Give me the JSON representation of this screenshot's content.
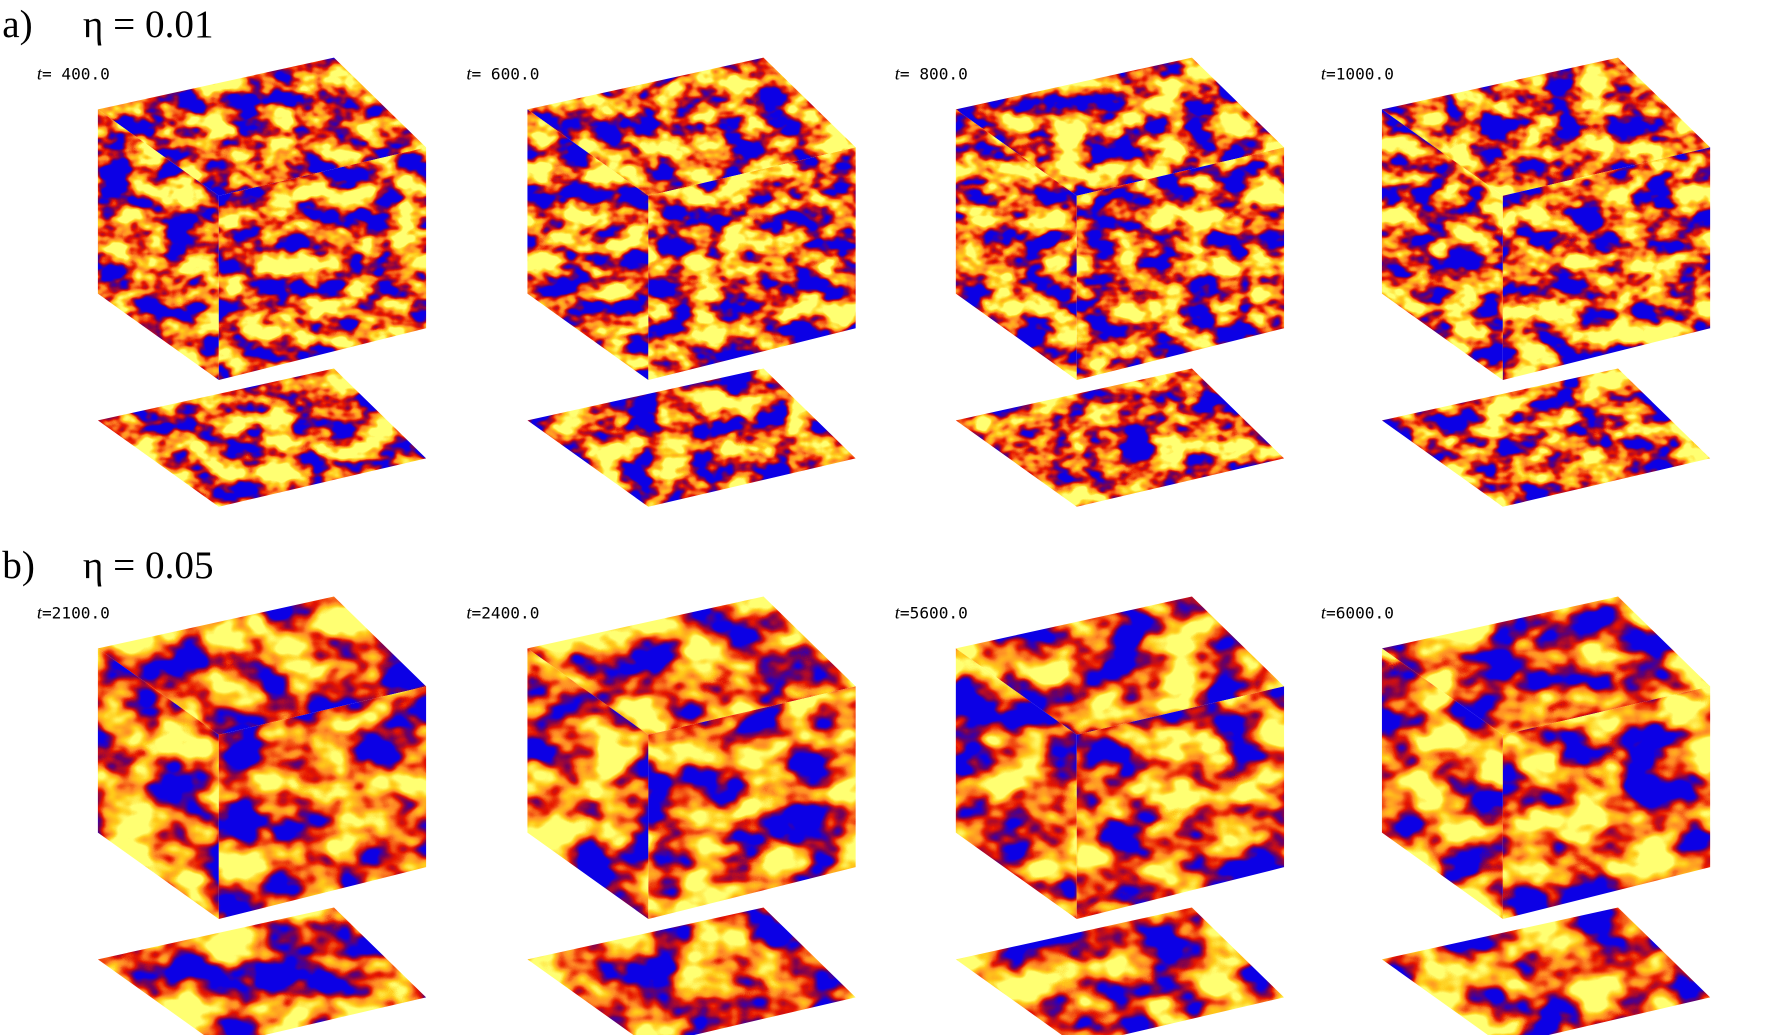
{
  "panels": [
    {
      "label": "a)",
      "eta": "η = 0.01",
      "snapshots": [
        {
          "symbol": "t",
          "time": "= 400.0"
        },
        {
          "symbol": "t",
          "time": "= 600.0"
        },
        {
          "symbol": "t",
          "time": "= 800.0"
        },
        {
          "symbol": "t",
          "time": "=1000.0"
        }
      ]
    },
    {
      "label": "b)",
      "eta": "η = 0.05",
      "snapshots": [
        {
          "symbol": "t",
          "time": "=2100.0"
        },
        {
          "symbol": "t",
          "time": "=2400.0"
        },
        {
          "symbol": "t",
          "time": "=5600.0"
        },
        {
          "symbol": "t",
          "time": "=6000.0"
        }
      ]
    }
  ]
}
